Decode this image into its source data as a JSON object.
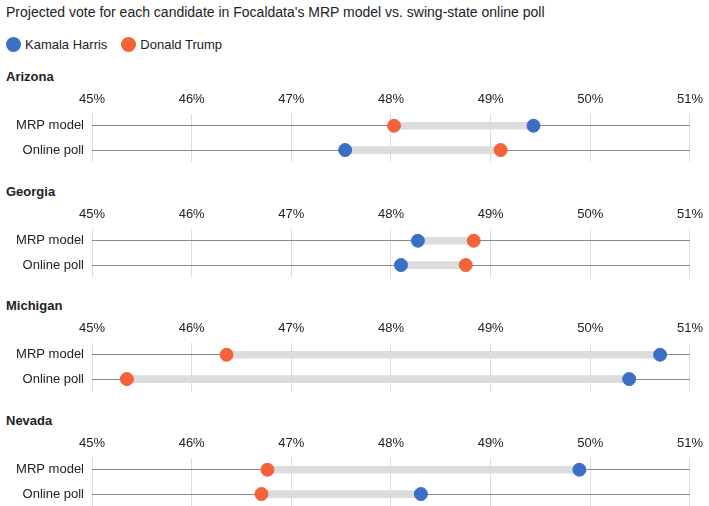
{
  "title": "Projected vote for each candidate in Focaldata's MRP model vs. swing-state online poll",
  "legend": "top-left",
  "chart_data": [
    {
      "type": "dumbbell",
      "title": "Arizona",
      "orientation": "horizontal",
      "grid": true,
      "categories": [
        "MRP model",
        "Online poll"
      ],
      "series": [
        {
          "name": "Kamala Harris",
          "color": "#3b6fc6",
          "values": [
            49.43,
            47.54
          ]
        },
        {
          "name": "Donald Trump",
          "color": "#f4623a",
          "values": [
            48.03,
            49.1
          ]
        }
      ],
      "xlim": [
        45,
        51
      ],
      "xticks": [
        {
          "value": 45,
          "label": "45%"
        },
        {
          "value": 46,
          "label": "46%"
        },
        {
          "value": 47,
          "label": "47%"
        },
        {
          "value": 48,
          "label": "48%"
        },
        {
          "value": 49,
          "label": "49%"
        },
        {
          "value": 50,
          "label": "50%"
        },
        {
          "value": 51,
          "label": "51%"
        }
      ]
    },
    {
      "type": "dumbbell",
      "title": "Georgia",
      "orientation": "horizontal",
      "grid": true,
      "categories": [
        "MRP model",
        "Online poll"
      ],
      "series": [
        {
          "name": "Kamala Harris",
          "color": "#3b6fc6",
          "values": [
            48.27,
            48.1
          ]
        },
        {
          "name": "Donald Trump",
          "color": "#f4623a",
          "values": [
            48.83,
            48.75
          ]
        }
      ],
      "xlim": [
        45,
        51
      ],
      "xticks": [
        {
          "value": 45,
          "label": "45%"
        },
        {
          "value": 46,
          "label": "46%"
        },
        {
          "value": 47,
          "label": "47%"
        },
        {
          "value": 48,
          "label": "48%"
        },
        {
          "value": 49,
          "label": "49%"
        },
        {
          "value": 50,
          "label": "50%"
        },
        {
          "value": 51,
          "label": "51%"
        }
      ]
    },
    {
      "type": "dumbbell",
      "title": "Michigan",
      "orientation": "horizontal",
      "grid": true,
      "categories": [
        "MRP model",
        "Online poll"
      ],
      "series": [
        {
          "name": "Kamala Harris",
          "color": "#3b6fc6",
          "values": [
            50.7,
            50.39
          ]
        },
        {
          "name": "Donald Trump",
          "color": "#f4623a",
          "values": [
            46.35,
            45.35
          ]
        }
      ],
      "xlim": [
        45,
        51
      ],
      "xticks": [
        {
          "value": 45,
          "label": "45%"
        },
        {
          "value": 46,
          "label": "46%"
        },
        {
          "value": 47,
          "label": "47%"
        },
        {
          "value": 48,
          "label": "48%"
        },
        {
          "value": 49,
          "label": "49%"
        },
        {
          "value": 50,
          "label": "50%"
        },
        {
          "value": 51,
          "label": "51%"
        }
      ]
    },
    {
      "type": "dumbbell",
      "title": "Nevada",
      "orientation": "horizontal",
      "grid": true,
      "categories": [
        "MRP model",
        "Online poll"
      ],
      "series": [
        {
          "name": "Kamala Harris",
          "color": "#3b6fc6",
          "values": [
            49.89,
            48.3
          ]
        },
        {
          "name": "Donald Trump",
          "color": "#f4623a",
          "values": [
            46.76,
            46.7
          ]
        }
      ],
      "xlim": [
        45,
        51
      ],
      "xticks": [
        {
          "value": 45,
          "label": "45%"
        },
        {
          "value": 46,
          "label": "46%"
        },
        {
          "value": 47,
          "label": "47%"
        },
        {
          "value": 48,
          "label": "48%"
        },
        {
          "value": 49,
          "label": "49%"
        },
        {
          "value": 50,
          "label": "50%"
        },
        {
          "value": 51,
          "label": "51%"
        }
      ]
    }
  ]
}
